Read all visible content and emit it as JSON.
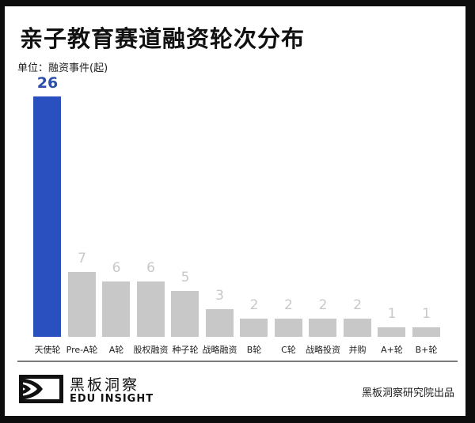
{
  "header": {
    "title": "亲子教育赛道融资轮次分布",
    "unit": "单位：融资事件(起)"
  },
  "footer": {
    "brand_cn": "黑板洞察",
    "brand_en": "EDU INSIGHT",
    "producer": "黑板洞察研究院出品",
    "logo_icon": "eye-frame-logo-icon"
  },
  "colors": {
    "highlight": "#2a4fbf",
    "highlight_label": "#2d4fa8",
    "bar": "#c8c8c8",
    "frame": "#0d0d0d"
  },
  "chart_data": {
    "type": "bar",
    "title": "亲子教育赛道融资轮次分布",
    "xlabel": "",
    "ylabel": "融资事件(起)",
    "categories": [
      "天使轮",
      "Pre-A轮",
      "A轮",
      "股权融资",
      "种子轮",
      "战略融资",
      "B轮",
      "C轮",
      "战略投资",
      "并购",
      "A+轮",
      "B+轮"
    ],
    "values": [
      26,
      7,
      6,
      6,
      5,
      3,
      2,
      2,
      2,
      2,
      1,
      1
    ],
    "highlight_index": 0,
    "ylim": [
      0,
      26
    ],
    "grid": false,
    "legend": "none",
    "data_labels": true
  }
}
